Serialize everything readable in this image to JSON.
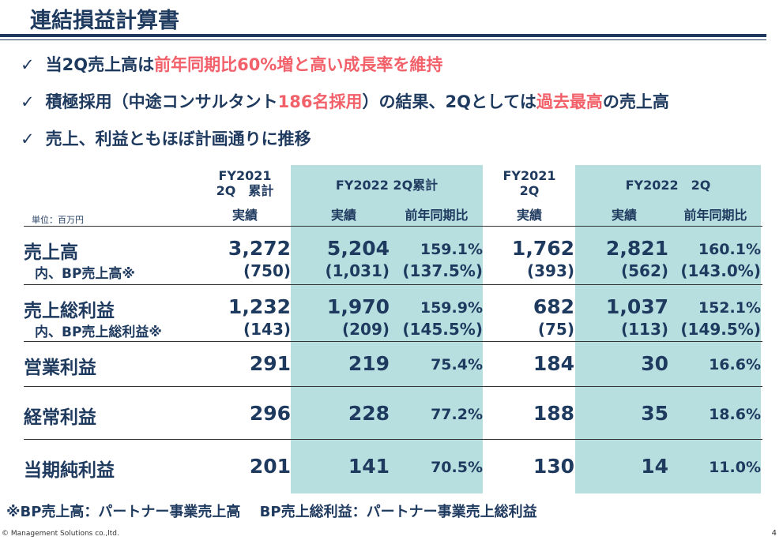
{
  "title": "連結損益計算書",
  "bullets": [
    {
      "check": "✓",
      "parts": [
        "当2Q売上高は",
        "前年同期比60%増と高い成長率を維持"
      ]
    },
    {
      "check": "✓",
      "parts": [
        "積極採用（中途コンサルタント",
        "186名採用",
        "）の結果、2Qとしては",
        "過去最高",
        "の売上高"
      ]
    },
    {
      "check": "✓",
      "parts": [
        "売上、利益ともほぼ計画通りに推移"
      ]
    }
  ],
  "table": {
    "unit": "単位：百万円",
    "headers": {
      "c1a": "FY2021",
      "c1b": "2Q　累計",
      "c1c": "実績",
      "g1": "FY2022 2Q累計",
      "c2": "実績",
      "c3": "前年同期比",
      "c4a": "FY2021",
      "c4b": "2Q",
      "c4c": "実績",
      "g2": "FY2022　2Q",
      "c5": "実績",
      "c6": "前年同期比"
    },
    "rows": [
      {
        "label": "売上高",
        "values": [
          "3,272",
          "5,204",
          "159.1%",
          "1,762",
          "2,821",
          "160.1%"
        ],
        "sub_label": "内、BP売上高※",
        "sub_values": [
          "(750)",
          "(1,031)",
          "(137.5%)",
          "(393)",
          "(562)",
          "(143.0%)"
        ]
      },
      {
        "label": "売上総利益",
        "values": [
          "1,232",
          "1,970",
          "159.9%",
          "682",
          "1,037",
          "152.1%"
        ],
        "sub_label": "内、BP売上総利益※",
        "sub_values": [
          "(143)",
          "(209)",
          "(145.5%)",
          "(75)",
          "(113)",
          "(149.5%)"
        ]
      },
      {
        "label": "営業利益",
        "values": [
          "291",
          "219",
          "75.4%",
          "184",
          "30",
          "16.6%"
        ]
      },
      {
        "label": "経常利益",
        "values": [
          "296",
          "228",
          "77.2%",
          "188",
          "35",
          "18.6%"
        ]
      },
      {
        "label": "当期純利益",
        "values": [
          "201",
          "141",
          "70.5%",
          "130",
          "14",
          "11.0%"
        ]
      }
    ]
  },
  "footnote": "※BP売上高：パートナー事業売上高　 BP売上総利益：パートナー事業売上総利益",
  "copyright": "© Management Solutions co.,ltd.",
  "page": "4"
}
